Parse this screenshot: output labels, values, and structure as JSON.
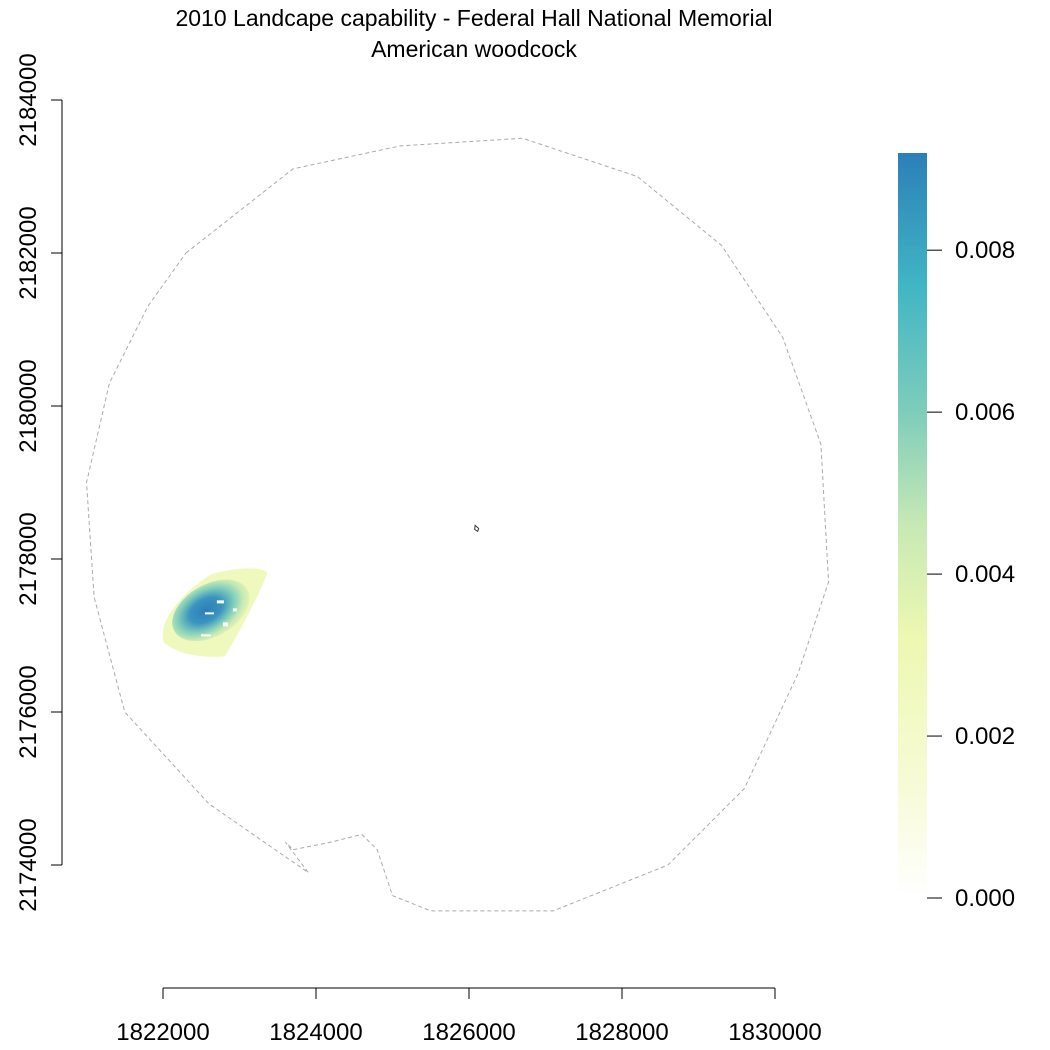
{
  "chart_data": {
    "type": "heatmap",
    "title": "2010 Landcape capability - Federal Hall National Memorial",
    "subtitle": "American woodcock",
    "xlabel": "",
    "ylabel": "",
    "xlim": [
      1821000,
      1831000
    ],
    "ylim": [
      2173000,
      2184500
    ],
    "x_ticks": [
      1822000,
      1824000,
      1826000,
      1828000,
      1830000
    ],
    "x_tick_labels": [
      "1822000",
      "1824000",
      "1826000",
      "1828000",
      "1830000"
    ],
    "y_ticks": [
      2174000,
      2176000,
      2178000,
      2180000,
      2182000,
      2184000
    ],
    "y_tick_labels": [
      "2174000",
      "2176000",
      "2178000",
      "2180000",
      "2182000",
      "2184000"
    ],
    "colorbar": {
      "min": 0,
      "max": 0.0092,
      "ticks": [
        0,
        0.002,
        0.004,
        0.006,
        0.008
      ],
      "tick_labels": [
        "0.000",
        "0.002",
        "0.004",
        "0.006",
        "0.008"
      ],
      "colors": [
        "#ffffff",
        "#f7fbd6",
        "#edf8b1",
        "#c7e9b4",
        "#7fcdbb",
        "#41b6c4",
        "#2c7fb8"
      ]
    },
    "boundary": [
      [
        1822300,
        2182000
      ],
      [
        1823700,
        2183100
      ],
      [
        1825100,
        2183400
      ],
      [
        1826700,
        2183500
      ],
      [
        1828200,
        2183000
      ],
      [
        1829300,
        2182100
      ],
      [
        1830100,
        2180900
      ],
      [
        1830600,
        2179500
      ],
      [
        1830700,
        2177700
      ],
      [
        1830300,
        2176500
      ],
      [
        1829600,
        2175000
      ],
      [
        1828600,
        2174000
      ],
      [
        1827100,
        2173400
      ],
      [
        1825500,
        2173400
      ],
      [
        1825000,
        2173600
      ],
      [
        1824800,
        2174200
      ],
      [
        1824600,
        2174400
      ],
      [
        1824200,
        2174300
      ],
      [
        1823700,
        2174200
      ],
      [
        1823600,
        2174300
      ],
      [
        1823900,
        2173900
      ],
      [
        1822600,
        2174800
      ],
      [
        1821500,
        2176000
      ],
      [
        1821100,
        2177500
      ],
      [
        1821000,
        2179000
      ],
      [
        1821300,
        2180300
      ],
      [
        1821800,
        2181300
      ],
      [
        1822300,
        2182000
      ]
    ],
    "memorial_site": [
      1826100,
      2178400
    ],
    "hotspot": {
      "center": [
        1822600,
        2177250
      ],
      "peak_value": 0.0092,
      "extent_x": [
        1822000,
        1823500
      ],
      "extent_y": [
        2176800,
        2177800
      ]
    }
  }
}
